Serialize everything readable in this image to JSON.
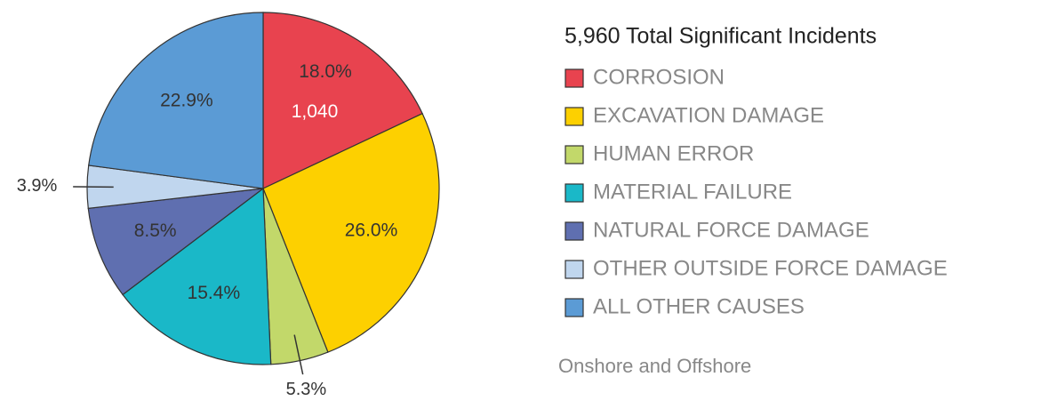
{
  "chart_data": {
    "type": "pie",
    "title": "5,960 Total Significant Incidents",
    "note": "Onshore and Offshore",
    "annotation": "1,040",
    "categories": [
      "CORROSION",
      "EXCAVATION DAMAGE",
      "HUMAN ERROR",
      "MATERIAL FAILURE",
      "NATURAL FORCE DAMAGE",
      "OTHER OUTSIDE FORCE DAMAGE",
      "ALL OTHER CAUSES"
    ],
    "values": [
      18.0,
      26.0,
      5.3,
      15.4,
      8.5,
      3.9,
      22.9
    ],
    "value_labels": [
      "18.0%",
      "26.0%",
      "5.3%",
      "15.4%",
      "8.5%",
      "3.9%",
      "22.9%"
    ],
    "colors": [
      "#e8434f",
      "#fdd000",
      "#c2d86a",
      "#1ab8c8",
      "#5f6fb0",
      "#c0d6ee",
      "#5b9bd5"
    ],
    "legend": "right"
  }
}
